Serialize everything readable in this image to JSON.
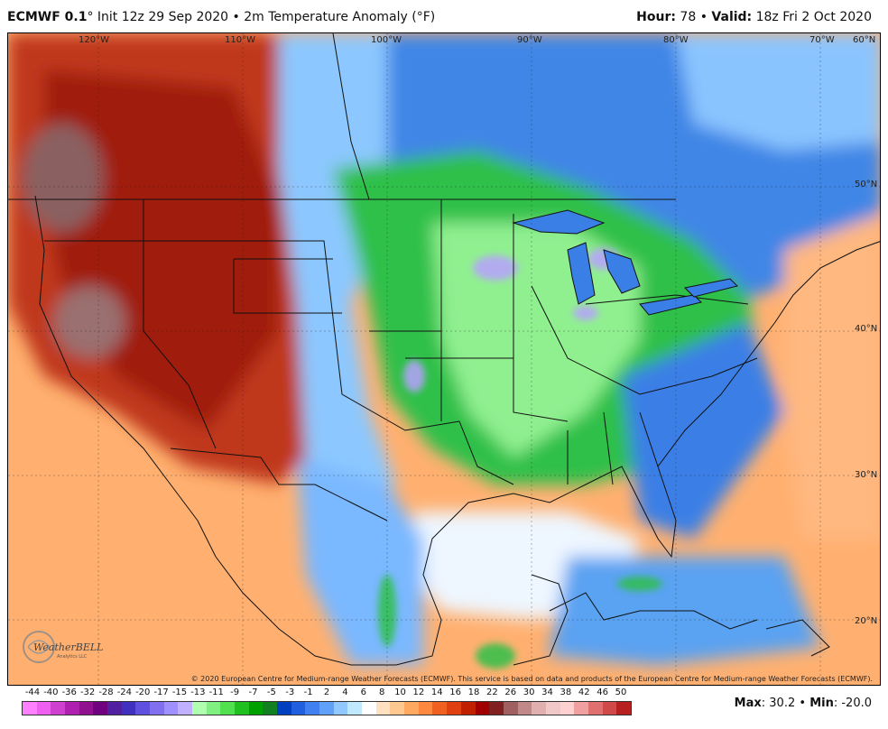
{
  "header": {
    "model": "ECMWF 0.1",
    "degree_symbol": "°",
    "init": "Init 12z 29 Sep 2020",
    "separator": "•",
    "product": "2m Temperature Anomaly (°F)",
    "hour_label": "Hour:",
    "hour_value": "78",
    "valid_label": "Valid:",
    "valid_value": "18z Fri 2 Oct 2020"
  },
  "map": {
    "longitude_labels": [
      "120°W",
      "110°W",
      "100°W",
      "90°W",
      "80°W",
      "70°W",
      "60°N"
    ],
    "latitude_labels": [
      "50°N",
      "40°N",
      "30°N",
      "20°N"
    ],
    "credit": "© 2020 European Centre for Medium-range Weather Forecasts (ECMWF). This service is based on data and products of the European Centre for Medium-range Weather Forecasts (ECMWF).",
    "logo_text": "WeatherBELL",
    "logo_subtext": "Analytics LLC"
  },
  "colorbar": {
    "labels": [
      "-44",
      "-40",
      "-36",
      "-32",
      "-28",
      "-24",
      "-20",
      "-17",
      "-15",
      "-13",
      "-11",
      "-9",
      "-7",
      "-5",
      "-3",
      "-1",
      "2",
      "4",
      "6",
      "8",
      "10",
      "12",
      "14",
      "16",
      "18",
      "22",
      "26",
      "30",
      "34",
      "38",
      "42",
      "46",
      "50"
    ],
    "colors": [
      "#ff80ff",
      "#f060f0",
      "#d040d0",
      "#b020b0",
      "#901090",
      "#700080",
      "#5020a0",
      "#4030c0",
      "#6050e0",
      "#8070f0",
      "#a090ff",
      "#c0b0ff",
      "#b0ffb0",
      "#80f080",
      "#50e050",
      "#20c020",
      "#00a000",
      "#108020",
      "#0040c0",
      "#2060e0",
      "#4080f0",
      "#60a0f8",
      "#90c8ff",
      "#c0e8ff",
      "#ffffff",
      "#ffe0c0",
      "#ffc890",
      "#ffa860",
      "#ff8840",
      "#f06020",
      "#e04010",
      "#c02000",
      "#a00000",
      "#802020",
      "#a06060",
      "#c08888",
      "#e0b0b0",
      "#f0c8c8",
      "#ffd0d0",
      "#f0a0a0",
      "#e07070",
      "#d04848",
      "#b82020"
    ]
  },
  "stats": {
    "max_label": "Max",
    "max_value": "30.2",
    "separator": "•",
    "min_label": "Min",
    "min_value": "-20.0"
  }
}
